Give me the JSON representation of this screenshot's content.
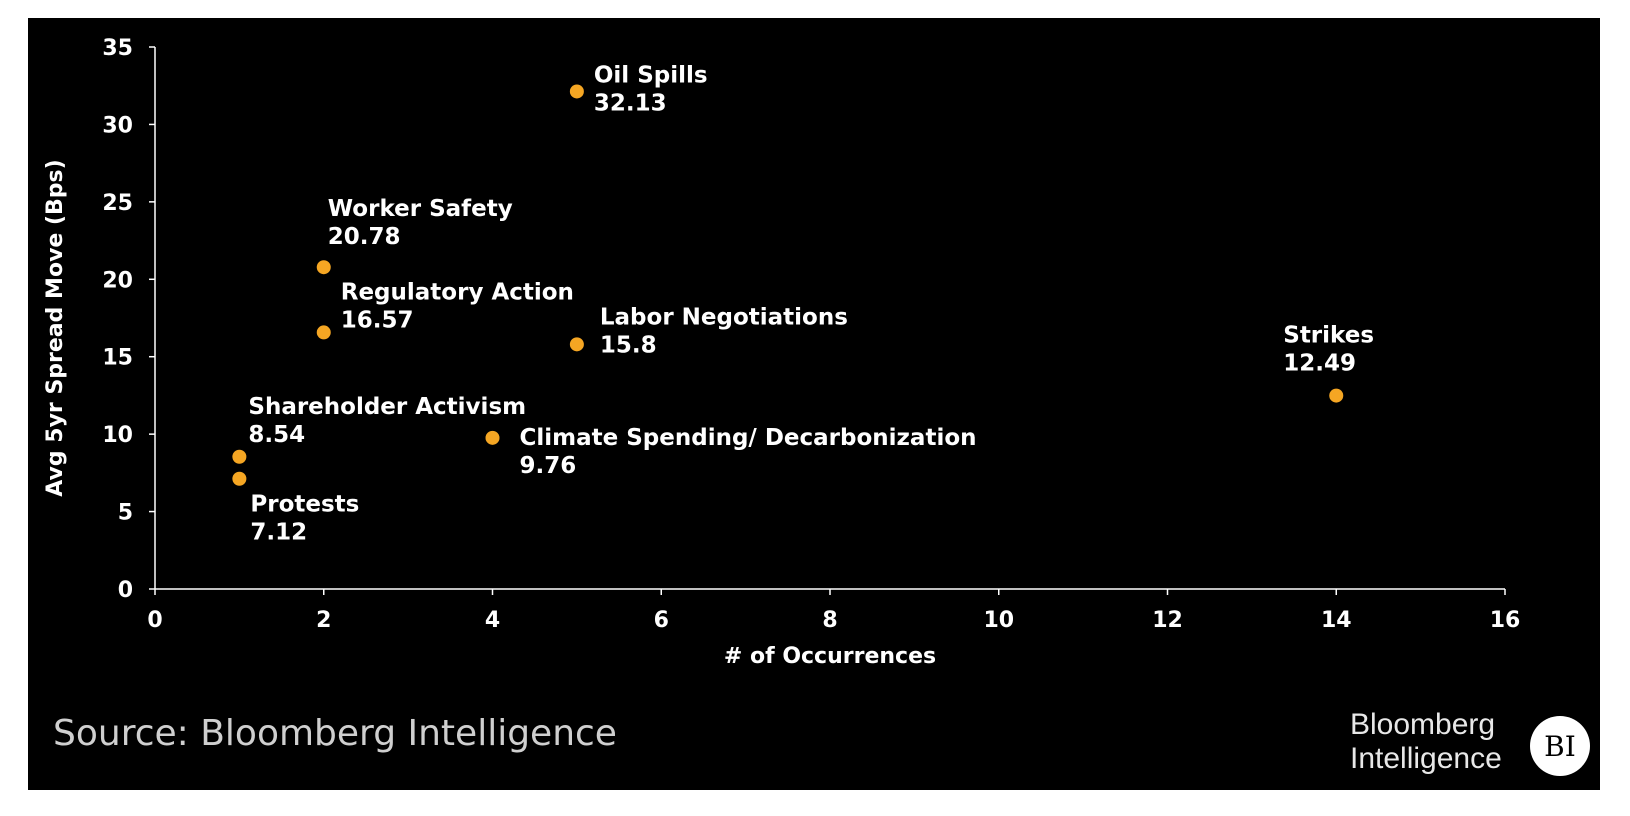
{
  "chart_data": {
    "type": "scatter",
    "title": "",
    "xlabel": "# of Occurrences",
    "ylabel": "Avg 5yr Spread Move (Bps)",
    "xlim": [
      0,
      16
    ],
    "ylim": [
      0,
      35
    ],
    "xticks": [
      "0",
      "2",
      "4",
      "6",
      "8",
      "10",
      "12",
      "14",
      "16"
    ],
    "yticks": [
      "0",
      "5",
      "10",
      "15",
      "20",
      "25",
      "30",
      "35"
    ],
    "grid": false,
    "marker_color": "#f5a623",
    "points": [
      {
        "label": "Oil Spills",
        "value_label": "32.13",
        "x": 5,
        "y": 32.13
      },
      {
        "label": "Worker Safety",
        "value_label": "20.78",
        "x": 2,
        "y": 20.78
      },
      {
        "label": "Regulatory Action",
        "value_label": "16.57",
        "x": 2,
        "y": 16.57
      },
      {
        "label": "Labor Negotiations",
        "value_label": "15.8",
        "x": 5,
        "y": 15.8
      },
      {
        "label": "Strikes",
        "value_label": "12.49",
        "x": 14,
        "y": 12.49
      },
      {
        "label": "Shareholder Activism",
        "value_label": "8.54",
        "x": 1,
        "y": 8.54
      },
      {
        "label": "Climate Spending/ Decarbonization",
        "value_label": "9.76",
        "x": 4,
        "y": 9.76
      },
      {
        "label": "Protests",
        "value_label": "7.12",
        "x": 1,
        "y": 7.12
      }
    ]
  },
  "footer": {
    "source": "Source: Bloomberg Intelligence",
    "brand_line1": "Bloomberg",
    "brand_line2": "Intelligence",
    "brand_badge": "BI"
  },
  "colors": {
    "background": "#000000",
    "axis": "#ffffff",
    "text": "#ffffff"
  }
}
